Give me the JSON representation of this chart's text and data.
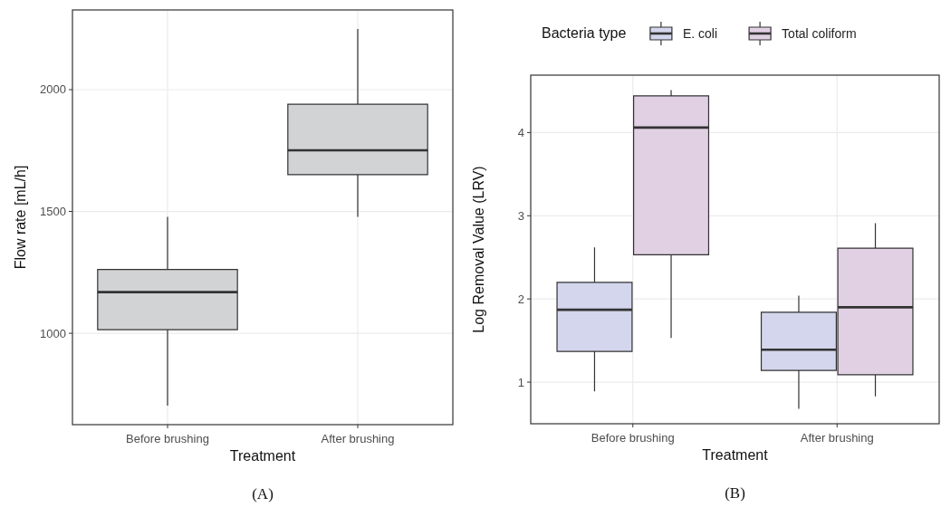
{
  "chart_data": [
    {
      "type": "box",
      "categories": [
        "Before brushing",
        "After brushing"
      ],
      "xlabel": "Treatment",
      "ylabel": "Flow rate [mL/h]",
      "color": "#d2d3d5",
      "boxes": [
        {
          "low": 703,
          "q1": 1015,
          "median": 1169,
          "q3": 1262,
          "high": 1478
        },
        {
          "low": 1478,
          "q1": 1651,
          "median": 1751,
          "q3": 1940,
          "high": 2249
        }
      ],
      "ylim": [
        625,
        2327
      ],
      "yticks": [
        1000,
        1500,
        2000
      ],
      "grid": true,
      "legend": false,
      "annotations": [
        "(A)"
      ]
    },
    {
      "type": "box",
      "categories": [
        "Before brushing",
        "After brushing"
      ],
      "xlabel": "Treatment",
      "ylabel": "Log Removal Value (LRV)",
      "legend_title": "Bacteria type",
      "series": [
        {
          "name": "E. coli",
          "color": "#d3d6ec",
          "boxes": [
            {
              "low": 0.89,
              "q1": 1.37,
              "median": 1.87,
              "q3": 2.2,
              "high": 2.62
            },
            {
              "low": 0.68,
              "q1": 1.14,
              "median": 1.39,
              "q3": 1.84,
              "high": 2.04
            }
          ]
        },
        {
          "name": "Total coliform",
          "color": "#e1d0e4",
          "boxes": [
            {
              "low": 1.53,
              "q1": 2.53,
              "median": 4.06,
              "q3": 4.44,
              "high": 4.51
            },
            {
              "low": 0.83,
              "q1": 1.09,
              "median": 1.9,
              "q3": 2.61,
              "high": 2.91
            }
          ]
        }
      ],
      "ylim": [
        0.5,
        4.69
      ],
      "yticks": [
        1,
        2,
        3,
        4
      ],
      "grid": true,
      "legend": "top",
      "annotations": [
        "(B)"
      ]
    }
  ]
}
